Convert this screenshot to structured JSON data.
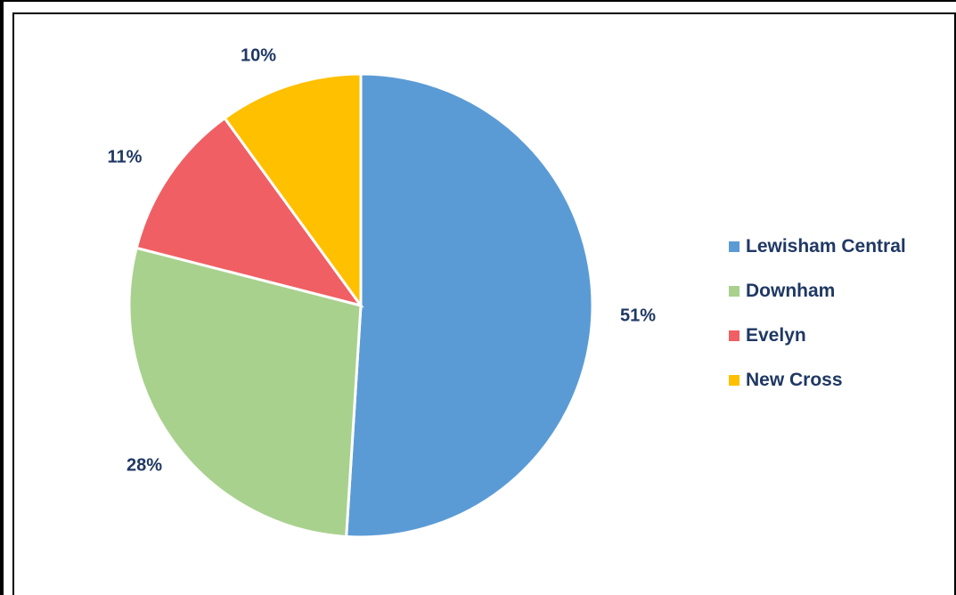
{
  "chart_data": {
    "type": "pie",
    "categories": [
      "Lewisham Central",
      "Downham",
      "Evelyn",
      "New Cross"
    ],
    "values": [
      51,
      28,
      11,
      10
    ],
    "value_labels": [
      "51%",
      "28%",
      "11%",
      "10%"
    ],
    "colors": [
      "#5b9bd5",
      "#a9d18e",
      "#f05f63",
      "#ffc000"
    ],
    "legend_position": "right",
    "title": ""
  }
}
